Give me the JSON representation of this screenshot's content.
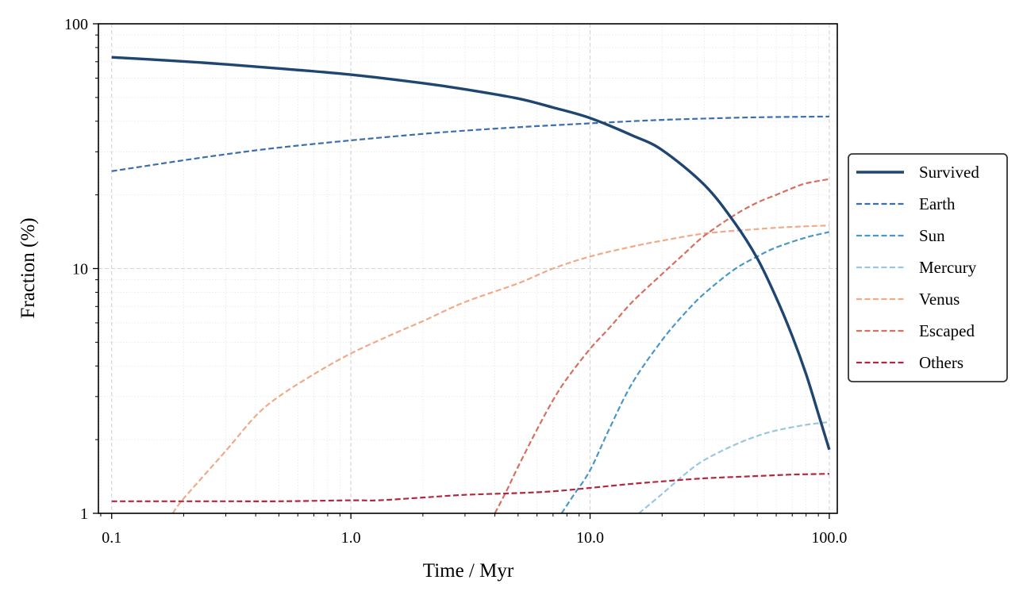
{
  "chart_data": {
    "type": "line",
    "title": "",
    "xlabel": "Time / Myr",
    "ylabel": "Fraction (%)",
    "xscale": "log",
    "yscale": "log",
    "xlim": [
      0.088,
      108
    ],
    "ylim": [
      1,
      100
    ],
    "x_ticks": [
      0.1,
      1,
      10,
      100
    ],
    "x_tick_labels": [
      "0.1",
      "1.0",
      "10.0",
      "100.0"
    ],
    "y_ticks": [
      1,
      10,
      100
    ],
    "y_tick_labels": [
      "1",
      "10",
      "100"
    ],
    "grid": true,
    "legend_position": "center-right outside",
    "series": [
      {
        "name": "Survived",
        "color": "#1f4571",
        "style": "solid",
        "points": [
          [
            0.1,
            73
          ],
          [
            0.2,
            70.2
          ],
          [
            0.3,
            68.3
          ],
          [
            0.5,
            65.7
          ],
          [
            1,
            62
          ],
          [
            2,
            57.2
          ],
          [
            3,
            54
          ],
          [
            5,
            49.5
          ],
          [
            7,
            45.5
          ],
          [
            10,
            41.2
          ],
          [
            15,
            35
          ],
          [
            20,
            30.5
          ],
          [
            30,
            22
          ],
          [
            40,
            15.5
          ],
          [
            50,
            11
          ],
          [
            60,
            7.6
          ],
          [
            70,
            5.3
          ],
          [
            80,
            3.7
          ],
          [
            90,
            2.55
          ],
          [
            100,
            1.82
          ]
        ]
      },
      {
        "name": "Earth",
        "color": "#3a6fae",
        "style": "dashed",
        "points": [
          [
            0.1,
            25
          ],
          [
            0.2,
            27.7
          ],
          [
            0.3,
            29.3
          ],
          [
            0.5,
            31.2
          ],
          [
            1,
            33.4
          ],
          [
            2,
            35.5
          ],
          [
            3,
            36.6
          ],
          [
            5,
            37.8
          ],
          [
            7,
            38.5
          ],
          [
            10,
            39.2
          ],
          [
            15,
            40
          ],
          [
            20,
            40.5
          ],
          [
            30,
            41
          ],
          [
            50,
            41.5
          ],
          [
            100,
            41.8
          ]
        ]
      },
      {
        "name": "Sun",
        "color": "#4a98c6",
        "style": "dashed",
        "points": [
          [
            7.6,
            1
          ],
          [
            8.5,
            1.18
          ],
          [
            10,
            1.5
          ],
          [
            12,
            2.2
          ],
          [
            15,
            3.4
          ],
          [
            20,
            5.1
          ],
          [
            25,
            6.6
          ],
          [
            30,
            7.9
          ],
          [
            40,
            9.9
          ],
          [
            50,
            11.2
          ],
          [
            60,
            12.2
          ],
          [
            80,
            13.4
          ],
          [
            100,
            14.1
          ]
        ]
      },
      {
        "name": "Mercury",
        "color": "#9ac7e0",
        "style": "dashed",
        "points": [
          [
            16,
            1
          ],
          [
            20,
            1.2
          ],
          [
            25,
            1.45
          ],
          [
            30,
            1.65
          ],
          [
            40,
            1.9
          ],
          [
            50,
            2.07
          ],
          [
            60,
            2.18
          ],
          [
            80,
            2.3
          ],
          [
            100,
            2.36
          ]
        ]
      },
      {
        "name": "Venus",
        "color": "#f0aa88",
        "style": "dashed",
        "points": [
          [
            0.18,
            1
          ],
          [
            0.2,
            1.15
          ],
          [
            0.3,
            1.8
          ],
          [
            0.4,
            2.5
          ],
          [
            0.5,
            3
          ],
          [
            0.7,
            3.7
          ],
          [
            1,
            4.5
          ],
          [
            1.5,
            5.4
          ],
          [
            2,
            6.1
          ],
          [
            3,
            7.3
          ],
          [
            5,
            8.7
          ],
          [
            7,
            10
          ],
          [
            10,
            11.2
          ],
          [
            15,
            12.3
          ],
          [
            20,
            13
          ],
          [
            30,
            13.9
          ],
          [
            50,
            14.5
          ],
          [
            70,
            14.8
          ],
          [
            100,
            15
          ]
        ]
      },
      {
        "name": "Escaped",
        "color": "#d6705f",
        "style": "dashed",
        "points": [
          [
            4,
            1
          ],
          [
            4.5,
            1.25
          ],
          [
            5,
            1.55
          ],
          [
            6,
            2.2
          ],
          [
            7,
            2.9
          ],
          [
            8,
            3.55
          ],
          [
            10,
            4.7
          ],
          [
            12,
            5.7
          ],
          [
            15,
            7.3
          ],
          [
            20,
            9.5
          ],
          [
            25,
            11.6
          ],
          [
            30,
            13.6
          ],
          [
            40,
            16.5
          ],
          [
            50,
            18.6
          ],
          [
            60,
            20
          ],
          [
            70,
            21.3
          ],
          [
            80,
            22.3
          ],
          [
            100,
            23.2
          ]
        ]
      },
      {
        "name": "Others",
        "color": "#b3283e",
        "style": "dashed",
        "points": [
          [
            0.1,
            1.12
          ],
          [
            0.3,
            1.12
          ],
          [
            0.5,
            1.12
          ],
          [
            1,
            1.13
          ],
          [
            1.3,
            1.13
          ],
          [
            2,
            1.16
          ],
          [
            3,
            1.19
          ],
          [
            5,
            1.21
          ],
          [
            7,
            1.23
          ],
          [
            10,
            1.27
          ],
          [
            15,
            1.32
          ],
          [
            20,
            1.35
          ],
          [
            30,
            1.39
          ],
          [
            50,
            1.42
          ],
          [
            70,
            1.44
          ],
          [
            100,
            1.45
          ]
        ]
      }
    ]
  }
}
